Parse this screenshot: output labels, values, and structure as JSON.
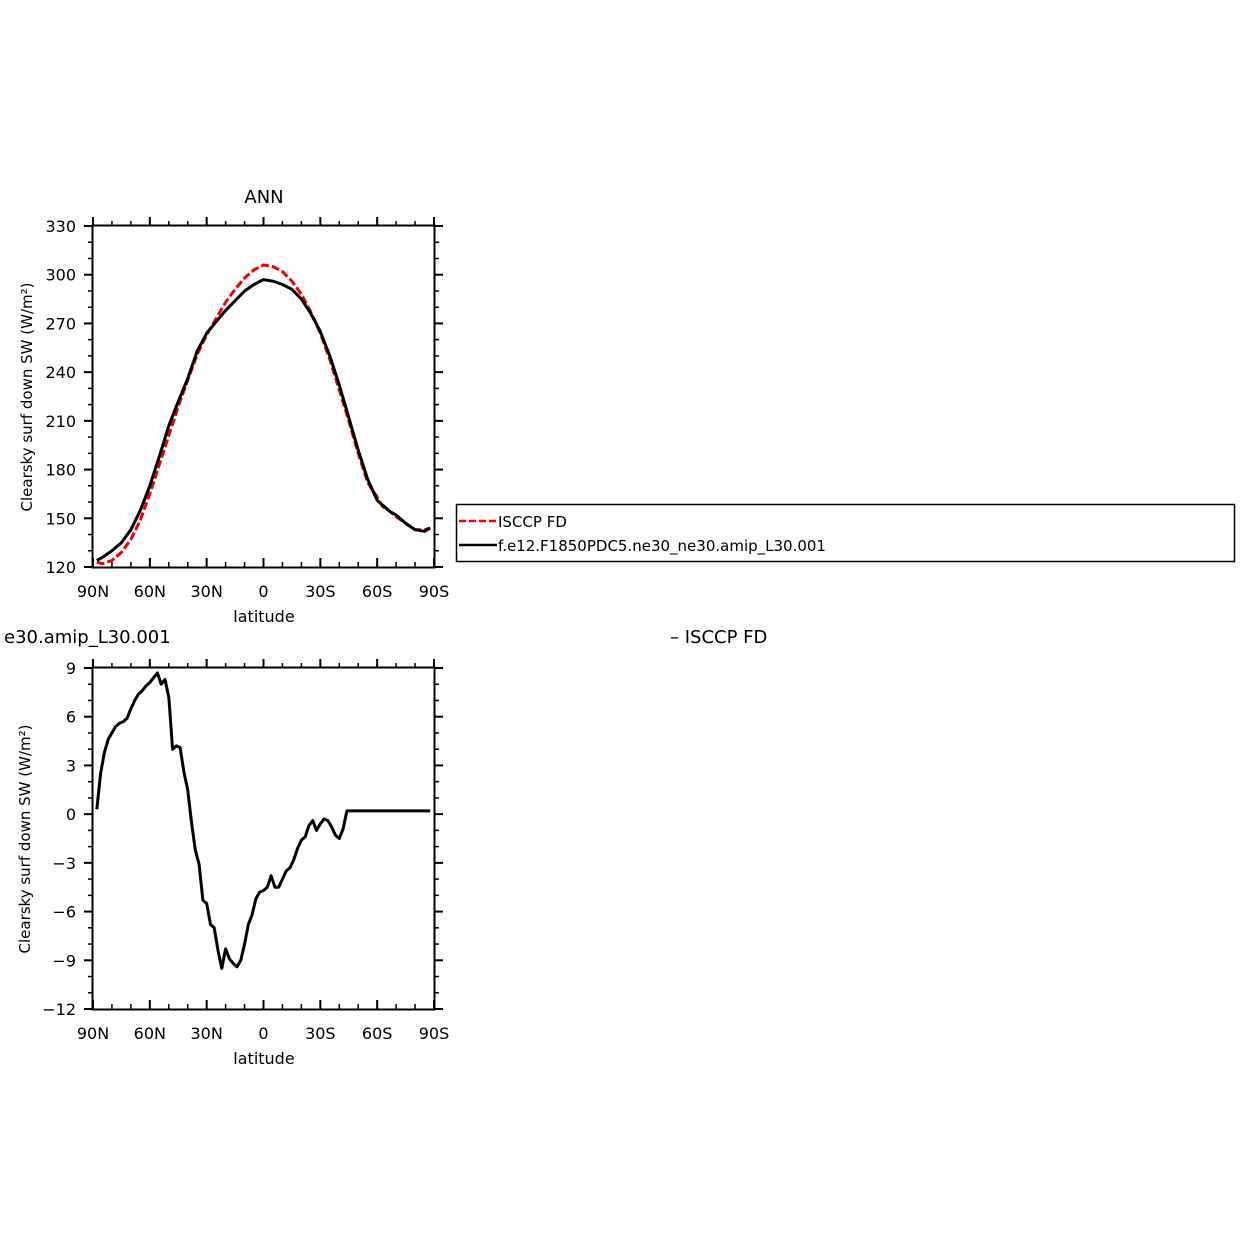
{
  "chart_data": [
    {
      "type": "line",
      "title": "ANN",
      "xlabel": "latitude",
      "ylabel": "Clearsky surf down SW (W/m²)",
      "xlim": [
        90,
        -90
      ],
      "ylim": [
        120,
        330
      ],
      "xticks": [
        {
          "value": 90,
          "label": "90N"
        },
        {
          "value": 60,
          "label": "60N"
        },
        {
          "value": 30,
          "label": "30N"
        },
        {
          "value": 0,
          "label": "0"
        },
        {
          "value": -30,
          "label": "30S"
        },
        {
          "value": -60,
          "label": "60S"
        },
        {
          "value": -90,
          "label": "90S"
        }
      ],
      "yticks": [
        120,
        150,
        180,
        210,
        240,
        270,
        300,
        330
      ],
      "legend_position": "right",
      "series": [
        {
          "name": "ISCCP FD",
          "color": "#ee0000",
          "style": "dashed",
          "x": [
            88,
            85,
            80,
            75,
            70,
            65,
            60,
            55,
            50,
            45,
            40,
            35,
            30,
            25,
            20,
            15,
            10,
            5,
            0,
            -5,
            -10,
            -15,
            -20,
            -25,
            -30,
            -35,
            -40,
            -45,
            -50,
            -55,
            -60,
            -63,
            -67,
            -70,
            -75,
            -80,
            -85,
            -88
          ],
          "y": [
            123,
            122,
            124,
            129,
            137,
            149,
            165,
            183,
            201,
            219,
            235,
            251,
            263,
            273,
            283,
            291,
            298,
            303,
            306,
            305,
            302,
            296,
            288,
            277,
            264,
            248,
            229,
            210,
            190,
            172,
            163,
            157,
            154,
            151,
            147,
            143,
            143,
            144
          ]
        },
        {
          "name": "f.e12.F1850PDC5.ne30_ne30.amip_L30.001",
          "color": "#000000",
          "style": "solid",
          "x": [
            88,
            85,
            80,
            75,
            70,
            65,
            60,
            55,
            50,
            45,
            40,
            35,
            30,
            25,
            20,
            15,
            10,
            5,
            0,
            -5,
            -10,
            -15,
            -20,
            -25,
            -30,
            -35,
            -40,
            -45,
            -50,
            -55,
            -60,
            -63,
            -67,
            -70,
            -75,
            -80,
            -85,
            -88
          ],
          "y": [
            124,
            126,
            130,
            135,
            143,
            155,
            170,
            188,
            207,
            222,
            236,
            253,
            264,
            271,
            278,
            284,
            290,
            294,
            297,
            296,
            294,
            291,
            285,
            276,
            265,
            250,
            232,
            212,
            192,
            174,
            161,
            158,
            154,
            152,
            147,
            143,
            142,
            144
          ]
        }
      ]
    },
    {
      "type": "line",
      "title": "e30.amip_L30.001",
      "title_right": "– ISCCP FD",
      "xlabel": "latitude",
      "ylabel": "Clearsky surf down SW (W/m²)",
      "xlim": [
        90,
        -90
      ],
      "ylim": [
        -12,
        9
      ],
      "xticks": [
        {
          "value": 90,
          "label": "90N"
        },
        {
          "value": 60,
          "label": "60N"
        },
        {
          "value": 30,
          "label": "30N"
        },
        {
          "value": 0,
          "label": "0"
        },
        {
          "value": -30,
          "label": "30S"
        },
        {
          "value": -60,
          "label": "60S"
        },
        {
          "value": -90,
          "label": "90S"
        }
      ],
      "yticks": [
        -12,
        -9,
        -6,
        -3,
        0,
        3,
        6,
        9
      ],
      "series": [
        {
          "color": "#000000",
          "style": "solid",
          "x": [
            88,
            86,
            84,
            82,
            80,
            78,
            76,
            74,
            72,
            70,
            68,
            66,
            64,
            62,
            60,
            58,
            56,
            54,
            52,
            50,
            48,
            46,
            44,
            42,
            40,
            38,
            36,
            34,
            32,
            30,
            28,
            26,
            24,
            22,
            20,
            18,
            16,
            14,
            12,
            10,
            8,
            6,
            4,
            2,
            0,
            -2,
            -4,
            -6,
            -8,
            -10,
            -12,
            -14,
            -16,
            -18,
            -20,
            -22,
            -24,
            -26,
            -28,
            -30,
            -32,
            -34,
            -36,
            -38,
            -40,
            -42,
            -44,
            -46,
            -48,
            -50,
            -52,
            -54,
            -56,
            -58,
            -60,
            -62,
            -64,
            -66,
            -68,
            -70,
            -72,
            -74,
            -76,
            -78,
            -80,
            -82,
            -84,
            -86,
            -88
          ],
          "y": [
            0.3,
            2.5,
            3.8,
            4.6,
            5.0,
            5.4,
            5.6,
            5.7,
            5.9,
            6.5,
            7.0,
            7.4,
            7.6,
            7.9,
            8.1,
            8.4,
            8.7,
            8.0,
            8.3,
            7.2,
            4.0,
            4.2,
            4.1,
            2.6,
            1.5,
            -0.5,
            -2.2,
            -3.1,
            -5.3,
            -5.5,
            -6.8,
            -7.0,
            -8.4,
            -9.5,
            -8.3,
            -8.9,
            -9.2,
            -9.4,
            -9.0,
            -8.0,
            -6.8,
            -6.2,
            -5.2,
            -4.8,
            -4.7,
            -4.5,
            -3.8,
            -4.5,
            -4.5,
            -4.0,
            -3.5,
            -3.3,
            -2.8,
            -2.1,
            -1.6,
            -1.4,
            -0.7,
            -0.4,
            -1.0,
            -0.6,
            -0.3,
            -0.4,
            -0.8,
            -1.3,
            -1.5,
            -0.9,
            0.2,
            0.2,
            0.2,
            0.2,
            0.2,
            0.2,
            0.2,
            0.2,
            0.2,
            0.2,
            0.2,
            0.2,
            0.2,
            0.2,
            0.2,
            0.2,
            0.2,
            0.2,
            0.2,
            0.2,
            0.2,
            0.2,
            0.2
          ]
        }
      ]
    }
  ]
}
